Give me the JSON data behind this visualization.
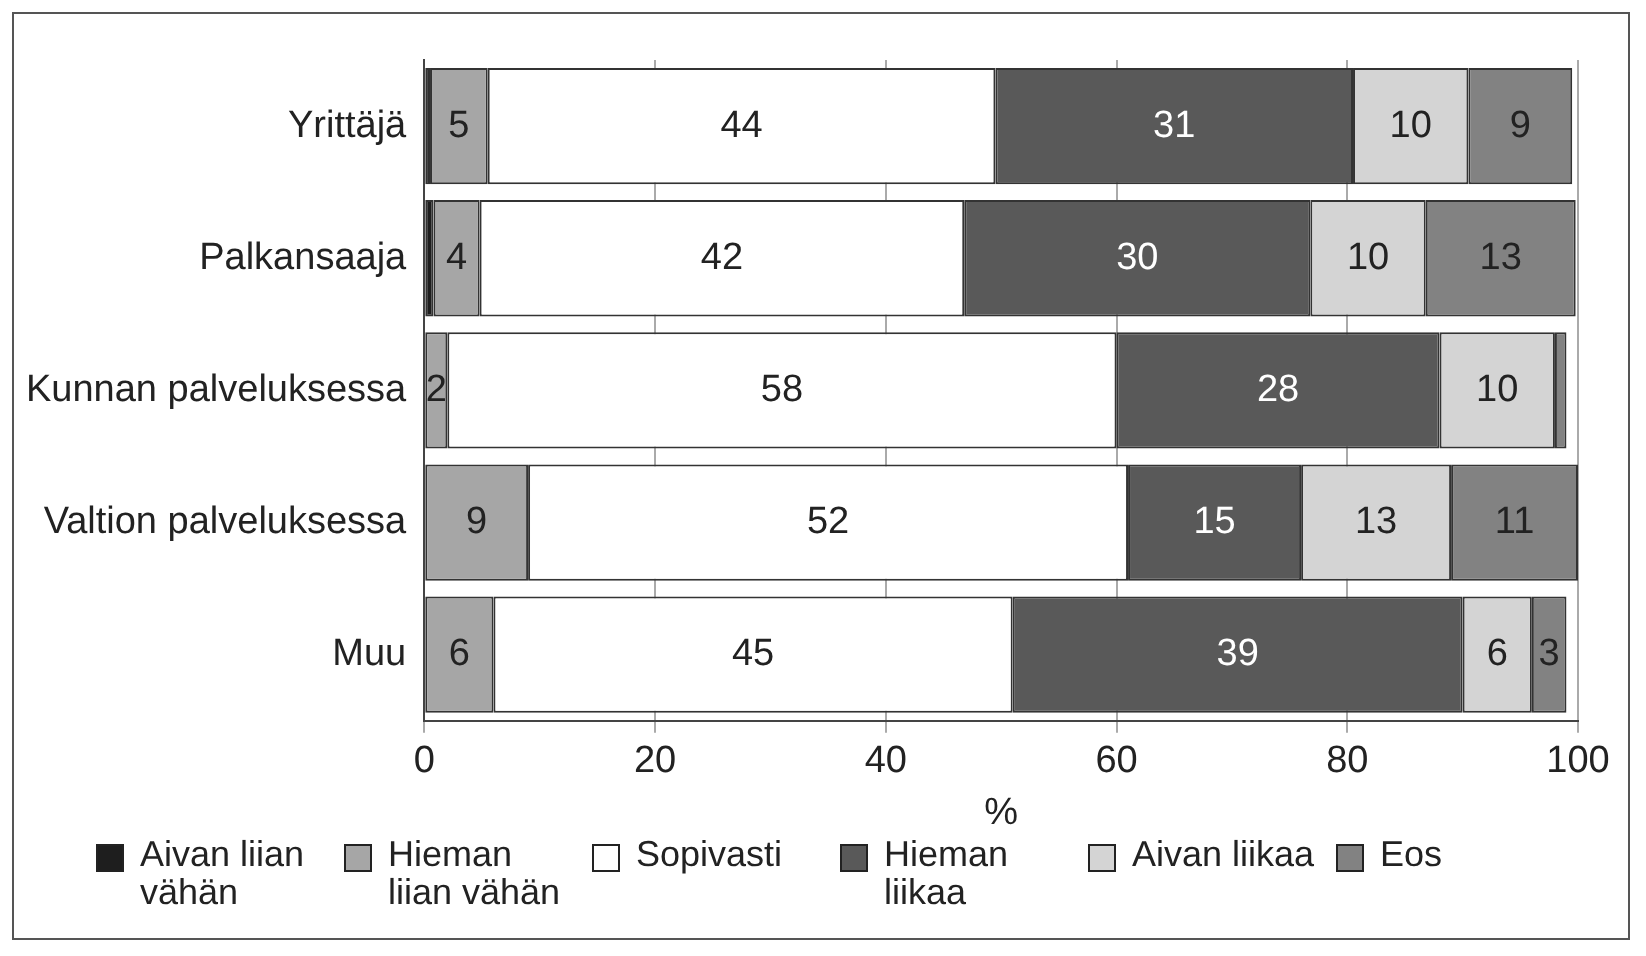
{
  "chart_data": {
    "type": "bar",
    "orientation": "horizontal",
    "stacked": true,
    "xlabel": "%",
    "categories": [
      "Yrittäjä",
      "Palkansaaja",
      "Kunnan palveluksessa",
      "Valtion palveluksessa",
      "Muu"
    ],
    "series": [
      {
        "name": "Aivan liian vähän",
        "color": "#1e1e1e",
        "values": [
          0.5,
          0.8,
          0,
          0,
          0
        ],
        "value_labels": [
          null,
          null,
          null,
          null,
          null
        ]
      },
      {
        "name": "Hieman liian vähän",
        "color": "#a6a6a6",
        "values": [
          5,
          4,
          2,
          9,
          6
        ],
        "value_labels": [
          "5",
          "4",
          "2",
          "9",
          "6"
        ]
      },
      {
        "name": "Sopivasti",
        "color": "#ffffff",
        "values": [
          44,
          42,
          58,
          52,
          45
        ],
        "value_labels": [
          "44",
          "42",
          "58",
          "52",
          "45"
        ]
      },
      {
        "name": "Hieman liikaa",
        "color": "#595959",
        "values": [
          31,
          30,
          28,
          15,
          39
        ],
        "value_labels": [
          "31",
          "30",
          "28",
          "15",
          "39"
        ]
      },
      {
        "name": "Aivan liikaa",
        "color": "#d4d4d4",
        "values": [
          10,
          10,
          10,
          13,
          6
        ],
        "value_labels": [
          "10",
          "10",
          "10",
          "13",
          "6"
        ]
      },
      {
        "name": "Eos",
        "color": "#828282",
        "values": [
          9,
          13,
          1,
          11,
          3
        ],
        "value_labels": [
          "9",
          "13",
          null,
          "11",
          "3"
        ]
      }
    ],
    "xlim": [
      0,
      100
    ],
    "xticks": [
      0,
      20,
      40,
      60,
      80,
      100
    ],
    "grid": "x",
    "legend": "bottom"
  }
}
